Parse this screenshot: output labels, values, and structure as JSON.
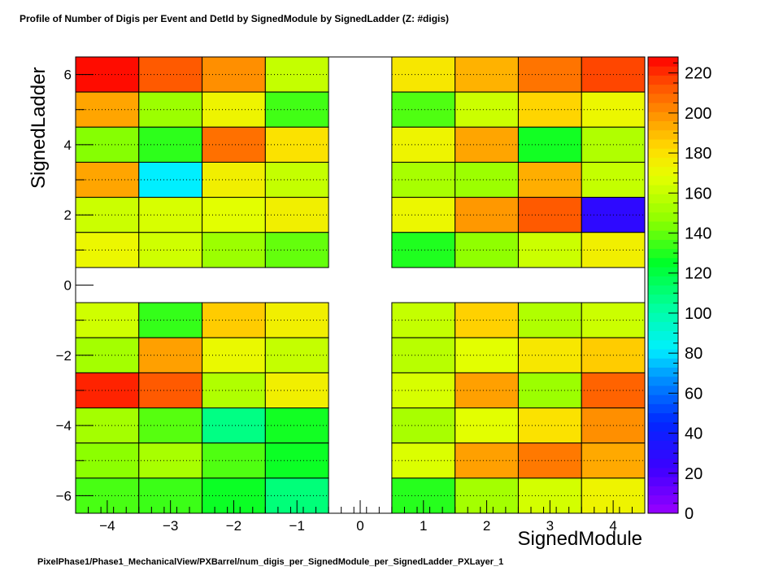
{
  "page": {
    "title": "Profile of Number of Digis per Event and DetId by SignedModule by SignedLadder (Z: #digis)",
    "footer": "PixelPhase1/Phase1_MechanicalView/PXBarrel/num_digis_per_SignedModule_per_SignedLadder_PXLayer_1"
  },
  "chart_data": {
    "type": "heatmap",
    "title": "Profile of Number of Digis per Event and DetId by SignedModule by SignedLadder (Z: #digis)",
    "xlabel": "SignedModule",
    "ylabel": "SignedLadder",
    "xlim": [
      -4.5,
      4.5
    ],
    "ylim": [
      -6.5,
      6.5
    ],
    "zlim": [
      0,
      228
    ],
    "x_categories": [
      -4,
      -3,
      -2,
      -1,
      0,
      1,
      2,
      3,
      4
    ],
    "y_categories": [
      6,
      5,
      4,
      3,
      2,
      1,
      0,
      -1,
      -2,
      -3,
      -4,
      -5,
      -6
    ],
    "x_ticks": [
      -4,
      -3,
      -2,
      -1,
      0,
      1,
      2,
      3,
      4
    ],
    "y_ticks": [
      6,
      4,
      2,
      0,
      -2,
      -4,
      -6
    ],
    "z_ticks": [
      0,
      20,
      40,
      60,
      80,
      100,
      120,
      140,
      160,
      180,
      200,
      220
    ],
    "grid": true,
    "colorbar": "right",
    "values": [
      [
        226,
        212,
        200,
        160,
        null,
        178,
        192,
        206,
        216
      ],
      [
        195,
        150,
        173,
        135,
        null,
        137,
        162,
        184,
        172
      ],
      [
        145,
        132,
        207,
        180,
        null,
        173,
        195,
        128,
        155
      ],
      [
        195,
        82,
        175,
        160,
        null,
        153,
        150,
        193,
        160
      ],
      [
        162,
        165,
        168,
        175,
        null,
        172,
        198,
        212,
        28
      ],
      [
        172,
        163,
        150,
        140,
        null,
        130,
        147,
        162,
        175
      ],
      [
        null,
        null,
        null,
        null,
        null,
        null,
        null,
        null,
        null
      ],
      [
        163,
        133,
        186,
        175,
        null,
        160,
        185,
        155,
        162
      ],
      [
        152,
        196,
        171,
        160,
        null,
        157,
        168,
        178,
        186
      ],
      [
        222,
        212,
        155,
        175,
        null,
        165,
        196,
        150,
        210
      ],
      [
        152,
        138,
        108,
        128,
        null,
        153,
        168,
        180,
        200
      ],
      [
        146,
        153,
        137,
        127,
        null,
        166,
        196,
        205,
        194
      ],
      [
        136,
        134,
        127,
        110,
        null,
        131,
        152,
        164,
        173
      ]
    ]
  }
}
